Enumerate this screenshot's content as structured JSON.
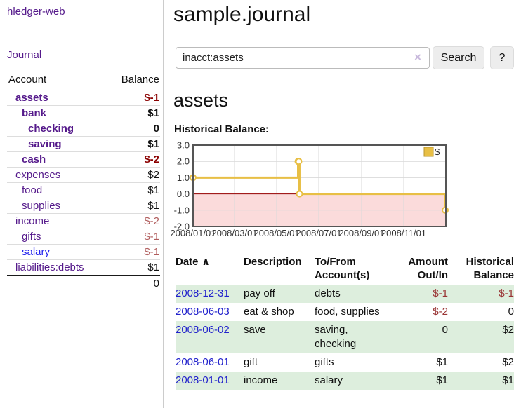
{
  "app": {
    "title": "hledger-web"
  },
  "sidebar": {
    "journal_link": "Journal",
    "accounts": {
      "header": {
        "account": "Account",
        "balance": "Balance"
      },
      "rows": [
        {
          "name": "assets",
          "balance": "$-1"
        },
        {
          "name": "bank",
          "balance": "$1"
        },
        {
          "name": "checking",
          "balance": "0"
        },
        {
          "name": "saving",
          "balance": "$1"
        },
        {
          "name": "cash",
          "balance": "$-2"
        },
        {
          "name": "expenses",
          "balance": "$2"
        },
        {
          "name": "food",
          "balance": "$1"
        },
        {
          "name": "supplies",
          "balance": "$1"
        },
        {
          "name": "income",
          "balance": "$-2"
        },
        {
          "name": "gifts",
          "balance": "$-1"
        },
        {
          "name": "salary",
          "balance": "$-1"
        },
        {
          "name": "liabilities:debts",
          "balance": "$1"
        }
      ],
      "total": "0"
    }
  },
  "main": {
    "title": "sample.journal",
    "search": {
      "value": "inacct:assets",
      "clear_icon": "×",
      "search_button": "Search",
      "help_button": "?"
    },
    "account_heading": "assets",
    "chart_title": "Historical Balance:"
  },
  "chart_data": {
    "type": "line",
    "title": "Historical Balance:",
    "step": "post",
    "x": [
      "2008-01-01",
      "2008-06-01",
      "2008-06-02",
      "2008-06-03",
      "2008-12-31"
    ],
    "values": [
      1,
      2,
      2,
      0,
      -1
    ],
    "xlim": [
      "2008-01-01",
      "2009-01-01"
    ],
    "ylim": [
      -2,
      3
    ],
    "y_ticks": [
      3,
      2,
      1,
      0,
      -1,
      -2
    ],
    "x_tick_labels": [
      "2008/01/01",
      "2008/03/01",
      "2008/05/01",
      "2008/07/01",
      "2008/09/01",
      "2008/11/01"
    ],
    "grid": true,
    "legend": [
      {
        "label": "$",
        "color": "#e8bf45"
      }
    ],
    "legend_position": "top-right",
    "line_color": "#e8bf45",
    "marker_fill": "#ffffff",
    "negative_region_color": "#fbdbdb",
    "zero_line_color": "#990000",
    "grid_color": "#d9d9d9",
    "border_color": "#555555"
  },
  "register": {
    "headers": {
      "date": "Date",
      "sort_icon": "∧",
      "description": "Description",
      "account": "To/From Account(s)",
      "amount": "Amount Out/In",
      "balance": "Historical Balance"
    },
    "rows": [
      {
        "date": "2008-12-31",
        "description": "pay off",
        "accounts": "debts",
        "amount": "$-1",
        "balance": "$-1"
      },
      {
        "date": "2008-06-03",
        "description": "eat & shop",
        "accounts": "food, supplies",
        "amount": "$-2",
        "balance": "0"
      },
      {
        "date": "2008-06-02",
        "description": "save",
        "accounts": "saving, checking",
        "amount": "0",
        "balance": "$2"
      },
      {
        "date": "2008-06-01",
        "description": "gift",
        "accounts": "gifts",
        "amount": "$1",
        "balance": "$2"
      },
      {
        "date": "2008-01-01",
        "description": "income",
        "accounts": "salary",
        "amount": "$1",
        "balance": "$1"
      }
    ]
  }
}
